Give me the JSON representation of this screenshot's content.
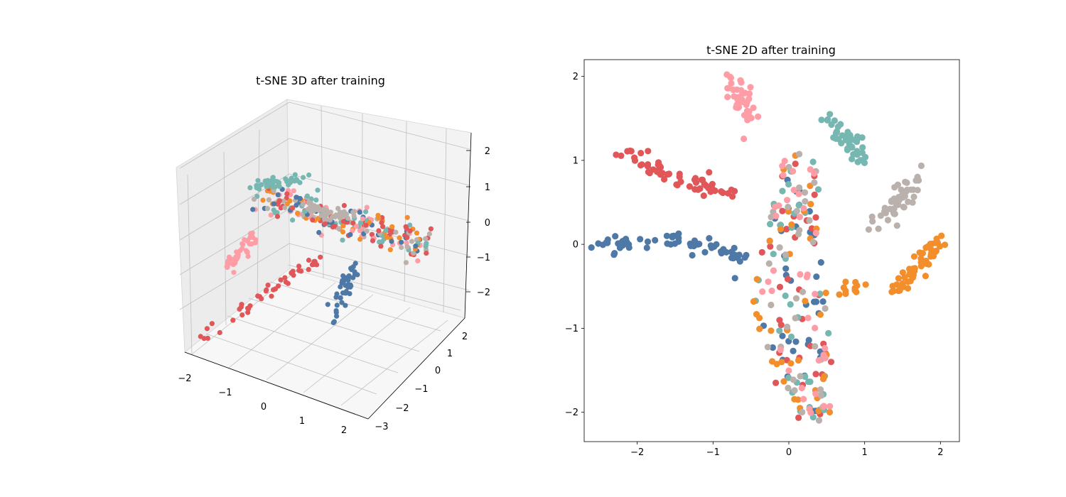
{
  "chart_data": [
    {
      "type": "scatter",
      "projection": "3d",
      "title": "t-SNE 3D after training",
      "xlim": [
        -2.2,
        2.6
      ],
      "ylim": [
        -3.2,
        2.4
      ],
      "zlim": [
        -2.6,
        2.3
      ],
      "xticks": [
        -2,
        -1,
        0,
        1,
        2
      ],
      "yticks": [
        -3,
        -2,
        -1,
        0,
        1,
        2
      ],
      "zticks": [
        -2,
        -1,
        0,
        1,
        2
      ],
      "xtick_labels": [
        "−2",
        "−1",
        "0",
        "1",
        "2"
      ],
      "ytick_labels": [
        "−3",
        "−2",
        "−1",
        "0",
        "1",
        "2"
      ],
      "ztick_labels": [
        "−2",
        "−1",
        "0",
        "1",
        "2"
      ],
      "grid": true,
      "colors": [
        "#4e79a7",
        "#e15759",
        "#76b7b2",
        "#f28e2b",
        "#bab0ac",
        "#ff9da7"
      ],
      "clusters": [
        {
          "color": "#e15759",
          "x": [
            0.0,
            0.3,
            0.55,
            0.8,
            1.0
          ],
          "y": [
            -2.8,
            -2.0,
            -1.3,
            -0.6,
            -0.1
          ],
          "z": [
            -1.8,
            -1.3,
            -0.8,
            -0.4,
            -0.1
          ]
        },
        {
          "color": "#4e79a7",
          "x": [
            1.3,
            1.35,
            1.4,
            1.45
          ],
          "y": [
            -0.3,
            0.0,
            0.2,
            0.4
          ],
          "z": [
            -1.6,
            -1.1,
            -0.7,
            -0.3
          ]
        },
        {
          "color": "#ff9da7",
          "x": [
            -0.5,
            -0.4,
            -0.3
          ],
          "y": [
            -0.8,
            -0.5,
            -0.2
          ],
          "z": [
            -1.0,
            -0.6,
            -0.2
          ]
        },
        {
          "color": "#76b7b2",
          "x": [
            -0.7,
            -0.3,
            0.2
          ],
          "y": [
            0.5,
            0.8,
            1.2
          ],
          "z": [
            0.6,
            0.9,
            1.1
          ]
        },
        {
          "color": "#bab0ac",
          "x": [
            0.2,
            0.6,
            1.0
          ],
          "y": [
            1.0,
            1.1,
            1.2
          ],
          "z": [
            0.4,
            0.4,
            0.5
          ]
        }
      ]
    },
    {
      "type": "scatter",
      "title": "t-SNE 2D after training",
      "xlim": [
        -2.7,
        2.25
      ],
      "ylim": [
        -2.35,
        2.2
      ],
      "xticks": [
        -2,
        -1,
        0,
        1,
        2
      ],
      "yticks": [
        -2,
        -1,
        0,
        1,
        2
      ],
      "xtick_labels": [
        "−2",
        "−1",
        "0",
        "1",
        "2"
      ],
      "ytick_labels": [
        "−2",
        "−1",
        "0",
        "1",
        "2"
      ],
      "grid": false,
      "clusters": [
        {
          "color": "#ff9da7",
          "n": 45,
          "x": [
            -0.8,
            -0.65,
            -0.5
          ],
          "y": [
            2.0,
            1.75,
            1.45
          ],
          "spread": 0.07
        },
        {
          "color": "#76b7b2",
          "n": 45,
          "x": [
            0.5,
            0.75,
            0.95
          ],
          "y": [
            1.48,
            1.3,
            1.0
          ],
          "spread": 0.06
        },
        {
          "color": "#e15759",
          "n": 60,
          "x": [
            -2.2,
            -1.7,
            -1.2,
            -0.75
          ],
          "y": [
            1.1,
            0.85,
            0.7,
            0.6
          ],
          "spread": 0.06
        },
        {
          "color": "#bab0ac",
          "n": 45,
          "x": [
            1.15,
            1.45,
            1.7
          ],
          "y": [
            0.2,
            0.5,
            0.85
          ],
          "spread": 0.07
        },
        {
          "color": "#4e79a7",
          "n": 65,
          "x": [
            -2.5,
            -1.9,
            -1.4,
            -0.9,
            -0.6
          ],
          "y": [
            0.0,
            0.0,
            0.03,
            -0.05,
            -0.2
          ],
          "spread": 0.06
        },
        {
          "color": "#f28e2b",
          "n": 50,
          "x": [
            1.35,
            1.65,
            2.0
          ],
          "y": [
            -0.6,
            -0.35,
            0.0
          ],
          "spread": 0.06
        },
        {
          "color": "#f28e2b",
          "n": 12,
          "x": [
            0.7,
            0.95
          ],
          "y": [
            -0.55,
            -0.5
          ],
          "spread": 0.05
        }
      ],
      "central_region": {
        "n_per_color": 38,
        "colors": [
          "#4e79a7",
          "#e15759",
          "#76b7b2",
          "#f28e2b",
          "#bab0ac",
          "#ff9da7"
        ],
        "path_x": [
          0.15,
          0.1,
          0.05,
          0.0,
          0.1,
          0.25,
          0.35
        ],
        "path_y": [
          1.0,
          0.5,
          0.0,
          -0.6,
          -1.2,
          -1.7,
          -2.05
        ],
        "half_width": [
          0.25,
          0.3,
          0.4,
          0.5,
          0.45,
          0.35,
          0.2
        ]
      }
    }
  ]
}
